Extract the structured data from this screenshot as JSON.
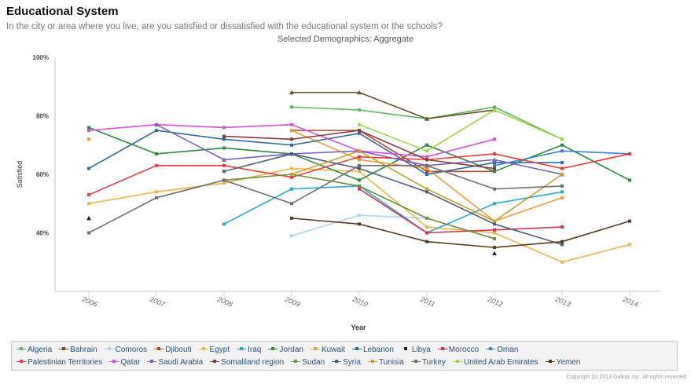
{
  "header": {
    "title": "Educational System",
    "subtitle": "In the city or area where you live, are you satisfied or dissatisfied with the educational system or the schools?",
    "demographics": "Selected Demographics: Aggregate"
  },
  "copyright": "Copyright (c) 2013 Gallup, Inc. All rights reserved",
  "chart_data": {
    "type": "line",
    "xlabel": "Year",
    "ylabel": "Satisfied",
    "x": [
      2006,
      2007,
      2008,
      2009,
      2010,
      2011,
      2012,
      2013,
      2014
    ],
    "ylim": [
      20,
      100
    ],
    "yticks": [
      "40%",
      "60%",
      "80%",
      "100%"
    ],
    "ytick_values": [
      40,
      60,
      80,
      100
    ],
    "grid": false,
    "legend_position": "bottom",
    "series": [
      {
        "name": "Algeria",
        "color": "#5cb85c",
        "values": [
          null,
          null,
          null,
          83,
          82,
          79,
          83,
          72,
          null
        ]
      },
      {
        "name": "Bahrain",
        "color": "#6b4f2e",
        "values": [
          null,
          null,
          null,
          88,
          88,
          79,
          82,
          null,
          null
        ]
      },
      {
        "name": "Comoros",
        "color": "#a9d6ee",
        "values": [
          null,
          null,
          null,
          39,
          46,
          45,
          null,
          null,
          null
        ]
      },
      {
        "name": "Djibouti",
        "color": "#b5482b",
        "values": [
          null,
          null,
          null,
          75,
          75,
          61,
          61,
          null,
          null
        ]
      },
      {
        "name": "Egypt",
        "color": "#f0b34a",
        "values": [
          50,
          54,
          57,
          62,
          61,
          42,
          40,
          30,
          36
        ]
      },
      {
        "name": "Iraq",
        "color": "#25a8d9",
        "values": [
          null,
          null,
          43,
          55,
          56,
          40,
          50,
          54,
          null
        ]
      },
      {
        "name": "Jordan",
        "color": "#2e8b3e",
        "values": [
          76,
          67,
          69,
          67,
          58,
          70,
          61,
          70,
          58
        ]
      },
      {
        "name": "Kuwait",
        "color": "#f19a3e",
        "values": [
          72,
          null,
          null,
          75,
          65,
          62,
          44,
          52,
          null
        ]
      },
      {
        "name": "Lebanon",
        "color": "#2e6b9e",
        "values": [
          62,
          75,
          72,
          70,
          74,
          60,
          64,
          64,
          null
        ]
      },
      {
        "name": "Libya",
        "color": "#222222",
        "values": [
          45,
          null,
          null,
          null,
          null,
          null,
          33,
          null,
          null
        ]
      },
      {
        "name": "Morocco",
        "color": "#d9304b",
        "values": [
          null,
          null,
          null,
          null,
          55,
          40,
          41,
          42,
          null
        ]
      },
      {
        "name": "Oman",
        "color": "#3a7fd4",
        "values": [
          null,
          null,
          null,
          null,
          null,
          null,
          63,
          68,
          67
        ]
      },
      {
        "name": "Palestinian Territories",
        "color": "#ee3a3a",
        "values": [
          53,
          63,
          63,
          59,
          66,
          65,
          67,
          62,
          67
        ]
      },
      {
        "name": "Qatar",
        "color": "#d94fd9",
        "values": [
          75,
          77,
          76,
          77,
          68,
          66,
          72,
          null,
          null
        ]
      },
      {
        "name": "Saudi Arabia",
        "color": "#7a5fc0",
        "values": [
          null,
          77,
          65,
          67,
          68,
          63,
          65,
          60,
          null
        ]
      },
      {
        "name": "Somaliland region",
        "color": "#8a3a3a",
        "values": [
          null,
          null,
          73,
          72,
          75,
          65,
          62,
          null,
          null
        ]
      },
      {
        "name": "Sudan",
        "color": "#6a8f3a",
        "values": [
          null,
          null,
          58,
          60,
          56,
          45,
          38,
          null,
          null
        ]
      },
      {
        "name": "Syria",
        "color": "#4a5f7a",
        "values": [
          null,
          null,
          61,
          67,
          62,
          54,
          43,
          36,
          null
        ]
      },
      {
        "name": "Tunisia",
        "color": "#c8a02a",
        "values": [
          null,
          null,
          null,
          60,
          68,
          55,
          44,
          60,
          null
        ]
      },
      {
        "name": "Turkey",
        "color": "#6d6d6d",
        "values": [
          40,
          52,
          58,
          50,
          63,
          63,
          55,
          56,
          null
        ]
      },
      {
        "name": "United Arab Emirates",
        "color": "#9ed64a",
        "values": [
          null,
          null,
          null,
          null,
          77,
          68,
          82,
          72,
          null
        ]
      },
      {
        "name": "Yemen",
        "color": "#5a3a1a",
        "values": [
          null,
          null,
          null,
          45,
          43,
          37,
          35,
          37,
          44
        ]
      }
    ]
  },
  "legend": {
    "row1": [
      "Algeria",
      "Bahrain",
      "Comoros",
      "Djibouti",
      "Egypt",
      "Iraq",
      "Jordan",
      "Kuwait",
      "Lebanon",
      "Libya",
      "Morocco",
      "Oman"
    ],
    "row2": [
      "Palestinian Territories",
      "Qatar",
      "Saudi Arabia",
      "Somaliland region",
      "Sudan",
      "Syria",
      "Tunisia",
      "Turkey",
      "United Arab Emirates",
      "Yemen"
    ]
  }
}
